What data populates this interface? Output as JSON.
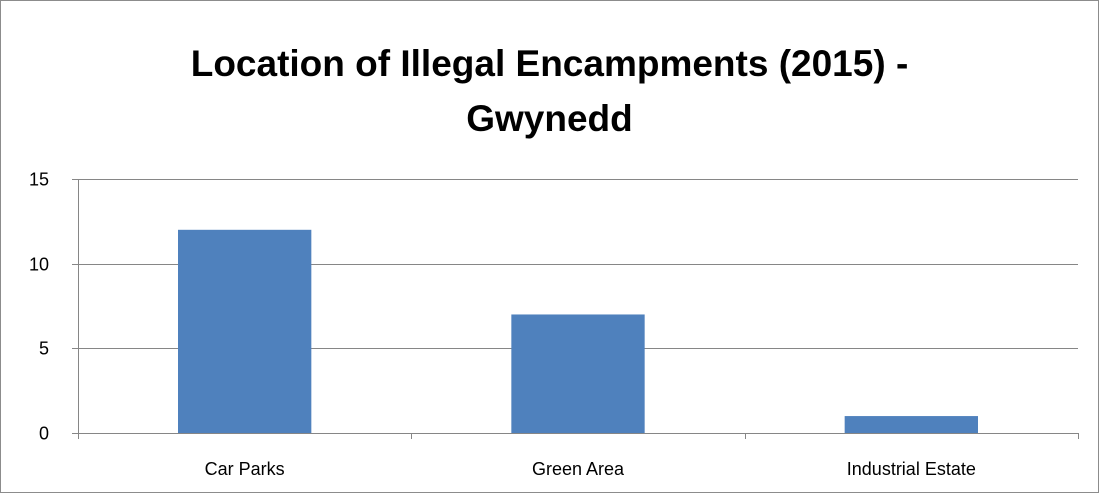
{
  "chart_data": {
    "type": "bar",
    "title_lines": [
      "Location of Illegal Encampments (2015) -",
      "Gwynedd"
    ],
    "categories": [
      "Car Parks",
      "Green Area",
      "Industrial Estate"
    ],
    "values": [
      12,
      7,
      1
    ],
    "ylim": [
      0,
      15
    ],
    "yticks": [
      0,
      5,
      10,
      15
    ],
    "grid": true,
    "legend": "none",
    "bar_color": "#4f81bd",
    "grid_color": "#868686"
  }
}
